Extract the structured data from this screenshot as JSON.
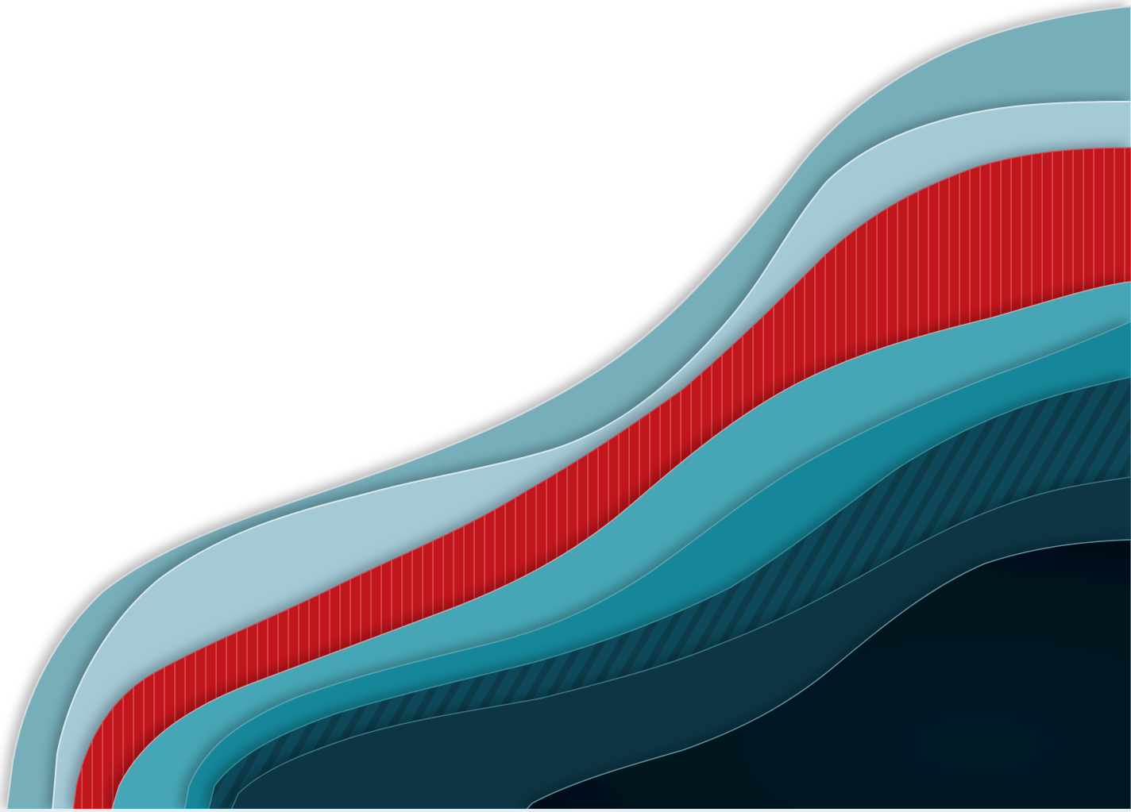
{
  "image": {
    "background": "#ffffff",
    "layers": [
      {
        "name": "outer-teal-wave",
        "color": "#76aeba",
        "pattern": "none"
      },
      {
        "name": "pale-blue-wave",
        "color": "#a4c9d7",
        "pattern": "none"
      },
      {
        "name": "red-striped-wave",
        "color": "#c0121e",
        "pattern": "vertical-stripes"
      },
      {
        "name": "light-teal-wave",
        "color": "#46a6b6",
        "pattern": "none"
      },
      {
        "name": "mid-teal-wave",
        "color": "#14879a",
        "pattern": "none"
      },
      {
        "name": "dark-teal-hatched-wave",
        "color": "#0b4a5a",
        "pattern": "diagonal-hatch"
      },
      {
        "name": "deep-teal-wave",
        "color": "#0a3444",
        "pattern": "none"
      },
      {
        "name": "navy-core-wave",
        "color": "#021722",
        "pattern": "none"
      }
    ],
    "edge_color": "#c8dde4"
  }
}
